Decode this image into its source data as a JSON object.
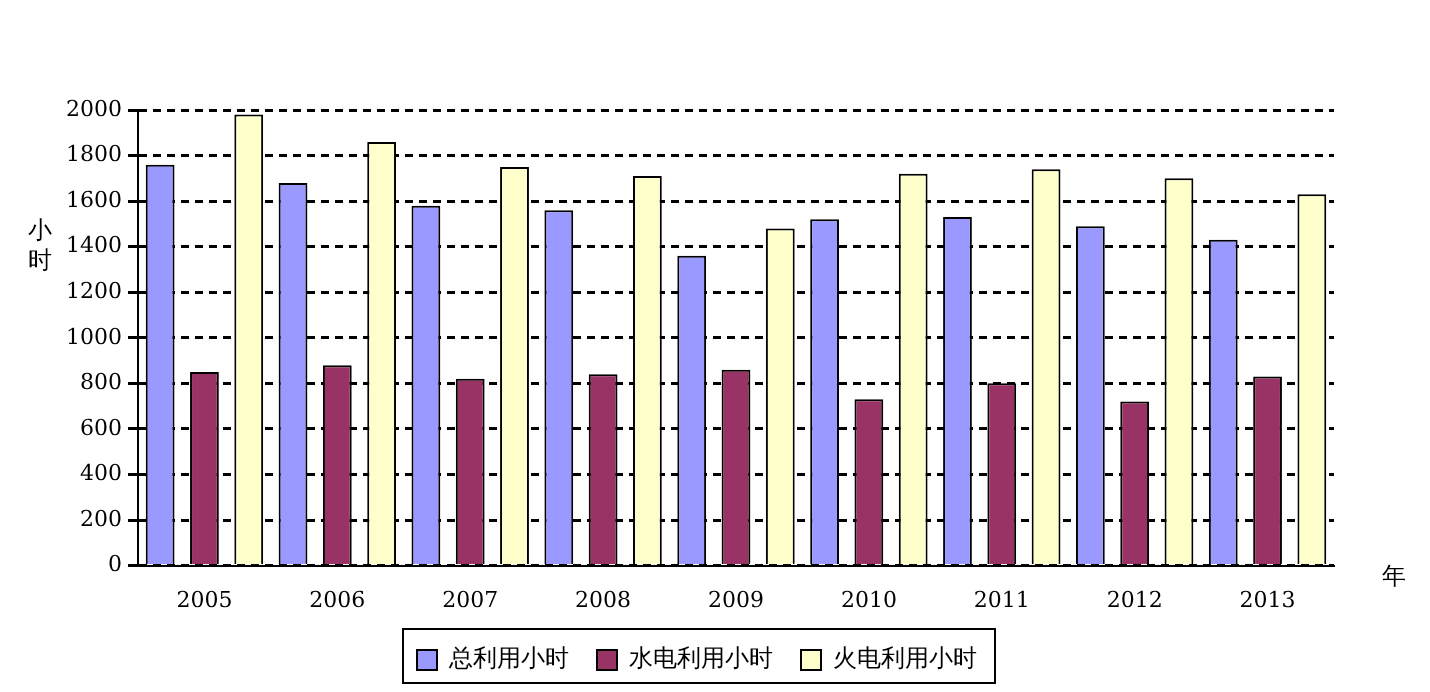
{
  "chart_data": {
    "type": "bar",
    "xlabel": "年",
    "ylabel": "小时",
    "categories": [
      "2005",
      "2006",
      "2007",
      "2008",
      "2009",
      "2010",
      "2011",
      "2012",
      "2013"
    ],
    "series": [
      {
        "name": "总利用小时",
        "color": "#9999ff",
        "values": [
          1760,
          1680,
          1580,
          1560,
          1360,
          1520,
          1530,
          1490,
          1430
        ]
      },
      {
        "name": "水电利用小时",
        "color": "#993366",
        "values": [
          850,
          880,
          820,
          840,
          860,
          730,
          800,
          720,
          830
        ]
      },
      {
        "name": "火电利用小时",
        "color": "#ffffcc",
        "values": [
          1980,
          1860,
          1750,
          1710,
          1480,
          1720,
          1740,
          1700,
          1630
        ]
      }
    ],
    "ylim": [
      0,
      2000
    ],
    "yticks": [
      0,
      200,
      400,
      600,
      800,
      1000,
      1200,
      1400,
      1600,
      1800,
      2000
    ],
    "grid": "y",
    "legend": "bottom"
  }
}
